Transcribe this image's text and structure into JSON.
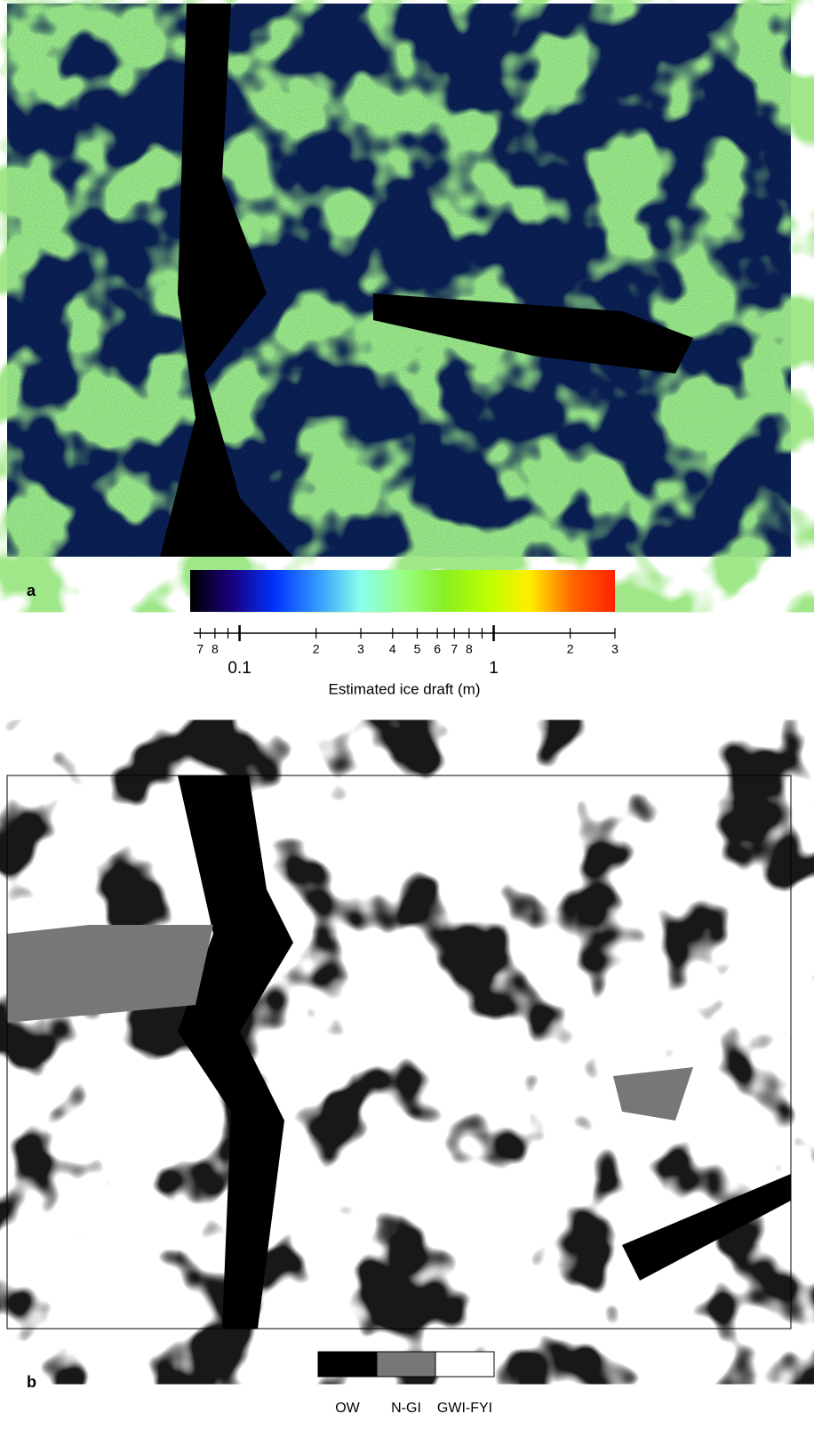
{
  "panel_a": {
    "label": "a",
    "colorbar": {
      "scale": "log",
      "xlim": [
        0.066,
        3
      ],
      "xticks": [
        {
          "value": 0.07,
          "label": "7"
        },
        {
          "value": 0.08,
          "label": "8"
        },
        0.1,
        {
          "value": 0.2,
          "label": "2"
        },
        {
          "value": 0.3,
          "label": "3"
        },
        {
          "value": 0.4,
          "label": "4"
        },
        {
          "value": 0.5,
          "label": "5"
        },
        {
          "value": 0.6,
          "label": "6"
        },
        {
          "value": 0.7,
          "label": "7"
        },
        {
          "value": 0.8,
          "label": "8"
        },
        1,
        2,
        3
      ],
      "minor_ticks": [
        0.09,
        0.9
      ],
      "colors": [
        "#000000",
        "#1a0080",
        "#0033ff",
        "#3399ff",
        "#88ffee",
        "#99ff88",
        "#88ee22",
        "#bbff00",
        "#ffee00",
        "#ff6600",
        "#ff2200"
      ],
      "title": "Estimated ice draft (m)"
    }
  },
  "panel_b": {
    "label": "b",
    "legend": {
      "categories": [
        "OW",
        "N-GI",
        "GWI-FYI"
      ],
      "colors": [
        "#000000",
        "#777777",
        "#ffffff"
      ]
    }
  }
}
